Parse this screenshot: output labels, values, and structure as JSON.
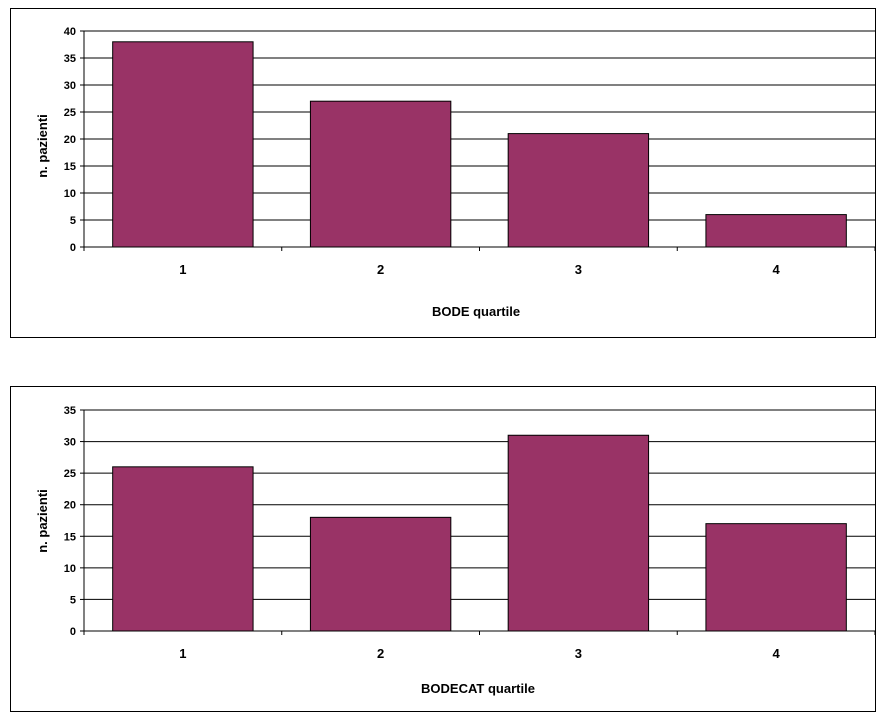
{
  "colors": {
    "bar_fill": "#993366",
    "bar_stroke": "#000000",
    "gridline": "#000000",
    "background": "#ffffff"
  },
  "chart_data": [
    {
      "type": "bar",
      "categories": [
        "1",
        "2",
        "3",
        "4"
      ],
      "values": [
        38,
        27,
        21,
        6
      ],
      "title": "",
      "xlabel": "BODE quartile",
      "ylabel": "n. pazienti",
      "ylim": [
        0,
        40
      ],
      "yticks": [
        "0",
        "5",
        "10",
        "15",
        "20",
        "25",
        "30",
        "35",
        "40"
      ],
      "grid": true,
      "legend": "none"
    },
    {
      "type": "bar",
      "categories": [
        "1",
        "2",
        "3",
        "4"
      ],
      "values": [
        26,
        18,
        31,
        17
      ],
      "title": "",
      "xlabel": "BODECAT quartile",
      "ylabel": "n. pazienti",
      "ylim": [
        0,
        35
      ],
      "yticks": [
        "0",
        "5",
        "10",
        "15",
        "20",
        "25",
        "30",
        "35"
      ],
      "grid": true,
      "legend": "none"
    }
  ]
}
